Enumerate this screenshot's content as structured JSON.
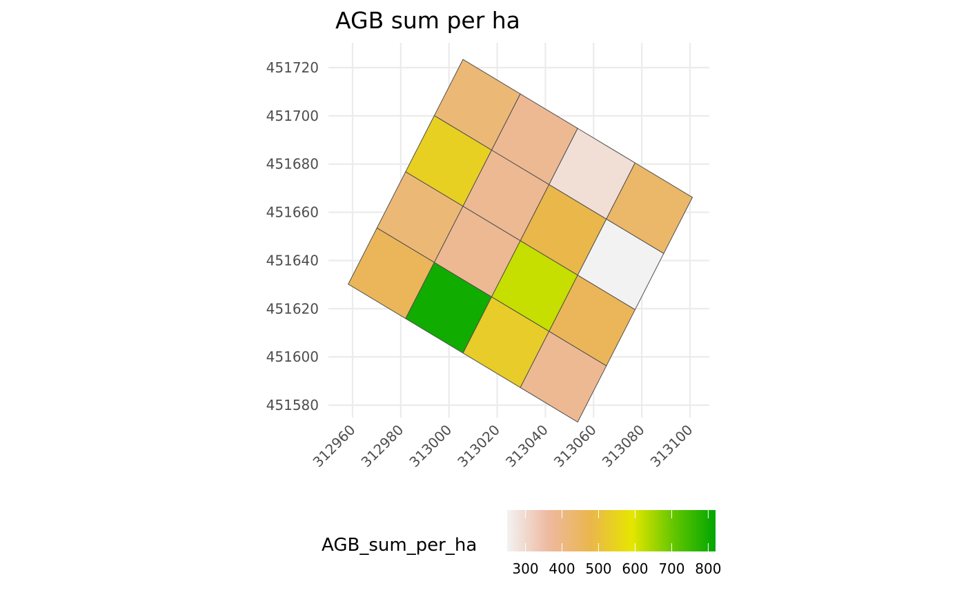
{
  "chart_data": {
    "type": "heatmap",
    "title": "AGB sum per ha",
    "xlabel": "",
    "ylabel": "",
    "x_ticks": [
      "312960",
      "312980",
      "313000",
      "313020",
      "313040",
      "313060",
      "313080",
      "313100"
    ],
    "y_ticks": [
      "451580",
      "451600",
      "451620",
      "451640",
      "451660",
      "451680",
      "451700",
      "451720"
    ],
    "xlim": [
      312956,
      313108
    ],
    "ylim": [
      451575,
      451730
    ],
    "grid": true,
    "legend_position": "bottom",
    "legend": {
      "title": "AGB_sum_per_ha",
      "ticks": [
        "300",
        "400",
        "500",
        "600",
        "700",
        "800"
      ],
      "range": [
        250,
        820
      ],
      "colors": [
        "#f2f2f2",
        "#eeb99f",
        "#eab64c",
        "#e6e600",
        "#63c600",
        "#00a600"
      ]
    },
    "grid_layout": {
      "origin": [
        313005.8,
        451723.4
      ],
      "col_vector": [
        23.8,
        -14.3
      ],
      "row_vector": [
        -11.9,
        -23.3
      ],
      "rows": 4,
      "cols": 4
    },
    "cells": [
      {
        "row": 0,
        "col": 0,
        "value": 420
      },
      {
        "row": 0,
        "col": 1,
        "value": 380
      },
      {
        "row": 0,
        "col": 2,
        "value": 290
      },
      {
        "row": 0,
        "col": 3,
        "value": 440
      },
      {
        "row": 1,
        "col": 0,
        "value": 540
      },
      {
        "row": 1,
        "col": 1,
        "value": 380
      },
      {
        "row": 1,
        "col": 2,
        "value": 480
      },
      {
        "row": 1,
        "col": 3,
        "value": 230
      },
      {
        "row": 2,
        "col": 0,
        "value": 420
      },
      {
        "row": 2,
        "col": 1,
        "value": 380
      },
      {
        "row": 2,
        "col": 2,
        "value": 620
      },
      {
        "row": 2,
        "col": 3,
        "value": 460
      },
      {
        "row": 3,
        "col": 0,
        "value": 460
      },
      {
        "row": 3,
        "col": 1,
        "value": 800
      },
      {
        "row": 3,
        "col": 2,
        "value": 530
      },
      {
        "row": 3,
        "col": 3,
        "value": 380
      }
    ]
  }
}
